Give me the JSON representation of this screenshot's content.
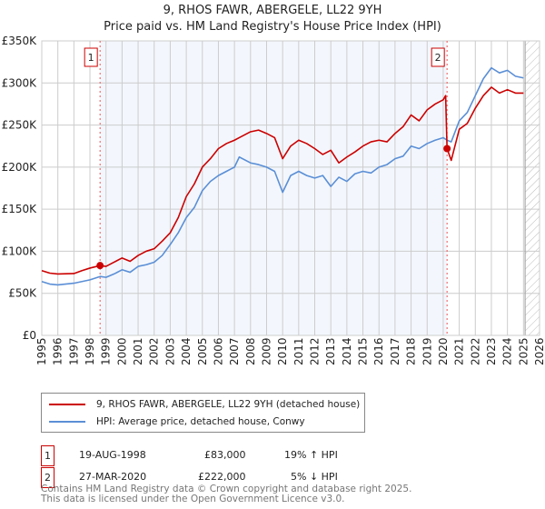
{
  "chart_data": {
    "type": "line",
    "title": "9, RHOS FAWR, ABERGELE, LL22 9YH",
    "subtitle": "Price paid vs. HM Land Registry's House Price Index (HPI)",
    "xlabel": "",
    "ylabel": "",
    "xlim": [
      1995,
      2026
    ],
    "ylim": [
      0,
      350000
    ],
    "xticks": [
      "1995",
      "1996",
      "1997",
      "1998",
      "1999",
      "2000",
      "2001",
      "2002",
      "2003",
      "2004",
      "2005",
      "2006",
      "2007",
      "2008",
      "2009",
      "2010",
      "2011",
      "2012",
      "2013",
      "2014",
      "2015",
      "2016",
      "2017",
      "2018",
      "2019",
      "2020",
      "2021",
      "2022",
      "2023",
      "2024",
      "2025",
      "2026"
    ],
    "yticks": [
      {
        "v": 0,
        "label": "£0"
      },
      {
        "v": 50000,
        "label": "£50K"
      },
      {
        "v": 100000,
        "label": "£100K"
      },
      {
        "v": 150000,
        "label": "£150K"
      },
      {
        "v": 200000,
        "label": "£200K"
      },
      {
        "v": 250000,
        "label": "£250K"
      },
      {
        "v": 300000,
        "label": "£300K"
      },
      {
        "v": 350000,
        "label": "£350K"
      }
    ],
    "grid": true,
    "series": [
      {
        "name": "9, RHOS FAWR, ABERGELE, LL22 9YH (detached house)",
        "color": "#cc0000",
        "x": [
          1995,
          1995.5,
          1996,
          1997,
          1997.5,
          1998,
          1998.63,
          1999,
          1999.5,
          2000,
          2000.5,
          2001,
          2001.5,
          2002,
          2002.5,
          2003,
          2003.5,
          2004,
          2004.5,
          2005,
          2005.5,
          2006,
          2006.5,
          2007,
          2007.3,
          2008,
          2008.5,
          2009,
          2009.5,
          2010,
          2010.5,
          2011,
          2011.5,
          2012,
          2012.5,
          2013,
          2013.5,
          2014,
          2014.5,
          2015,
          2015.5,
          2016,
          2016.5,
          2017,
          2017.5,
          2018,
          2018.5,
          2019,
          2019.5,
          2020,
          2020.15,
          2020.24,
          2020.5,
          2021,
          2021.5,
          2022,
          2022.5,
          2023,
          2023.5,
          2024,
          2024.5,
          2025
        ],
        "y": [
          77000,
          74000,
          73000,
          73500,
          77000,
          80000,
          83000,
          82000,
          87000,
          92000,
          88000,
          95000,
          100000,
          103000,
          112000,
          122000,
          140000,
          165000,
          180000,
          200000,
          210000,
          222000,
          228000,
          232000,
          235000,
          242000,
          244000,
          240000,
          235000,
          210000,
          225000,
          232000,
          228000,
          222000,
          215000,
          220000,
          205000,
          212000,
          218000,
          225000,
          230000,
          232000,
          230000,
          240000,
          248000,
          262000,
          255000,
          268000,
          275000,
          280000,
          285000,
          222000,
          208000,
          245000,
          252000,
          270000,
          285000,
          295000,
          288000,
          292000,
          288000,
          288000
        ]
      },
      {
        "name": "HPI: Average price, detached house, Conwy",
        "color": "#5b8fd6",
        "x": [
          1995,
          1995.5,
          1996,
          1997,
          1997.5,
          1998,
          1998.63,
          1999,
          1999.5,
          2000,
          2000.5,
          2001,
          2001.5,
          2002,
          2002.5,
          2003,
          2003.5,
          2004,
          2004.5,
          2005,
          2005.5,
          2006,
          2006.5,
          2007,
          2007.3,
          2008,
          2008.5,
          2009,
          2009.5,
          2010,
          2010.5,
          2011,
          2011.5,
          2012,
          2012.5,
          2013,
          2013.5,
          2014,
          2014.5,
          2015,
          2015.5,
          2016,
          2016.5,
          2017,
          2017.5,
          2018,
          2018.5,
          2019,
          2019.5,
          2020,
          2020.24,
          2020.5,
          2021,
          2021.5,
          2022,
          2022.5,
          2023,
          2023.5,
          2024,
          2024.5,
          2025
        ],
        "y": [
          64000,
          61000,
          60000,
          62000,
          64000,
          66000,
          70000,
          69000,
          73000,
          78000,
          75000,
          82000,
          84000,
          87000,
          95000,
          108000,
          122000,
          140000,
          152000,
          172000,
          183000,
          190000,
          195000,
          200000,
          212000,
          205000,
          203000,
          200000,
          195000,
          170000,
          190000,
          195000,
          190000,
          187000,
          190000,
          177000,
          188000,
          183000,
          192000,
          195000,
          193000,
          200000,
          203000,
          210000,
          213000,
          225000,
          222000,
          228000,
          232000,
          235000,
          232000,
          230000,
          255000,
          265000,
          285000,
          305000,
          318000,
          312000,
          315000,
          308000,
          306000
        ]
      }
    ],
    "sales": [
      {
        "id": "1",
        "x": 1998.63,
        "y": 83000,
        "date": "19-AUG-1998",
        "price": "£83,000",
        "hpi": "19% ↑ HPI"
      },
      {
        "id": "2",
        "x": 2020.24,
        "y": 222000,
        "date": "27-MAR-2020",
        "price": "£222,000",
        "hpi": "5% ↓ HPI"
      }
    ],
    "shaded_range": [
      1998.63,
      2020.24
    ],
    "forecast_from": 2025.1
  },
  "legend": {
    "red": "9, RHOS FAWR, ABERGELE, LL22 9YH (detached house)",
    "blue": "HPI: Average price, detached house, Conwy"
  },
  "table": [
    {
      "id": "1",
      "date": "19-AUG-1998",
      "price": "£83,000",
      "hpi": "19% ↑ HPI"
    },
    {
      "id": "2",
      "date": "27-MAR-2020",
      "price": "£222,000",
      "hpi": "5% ↓ HPI"
    }
  ],
  "footer": {
    "line1": "Contains HM Land Registry data © Crown copyright and database right 2025.",
    "line2": "This data is licensed under the Open Government Licence v3.0."
  }
}
